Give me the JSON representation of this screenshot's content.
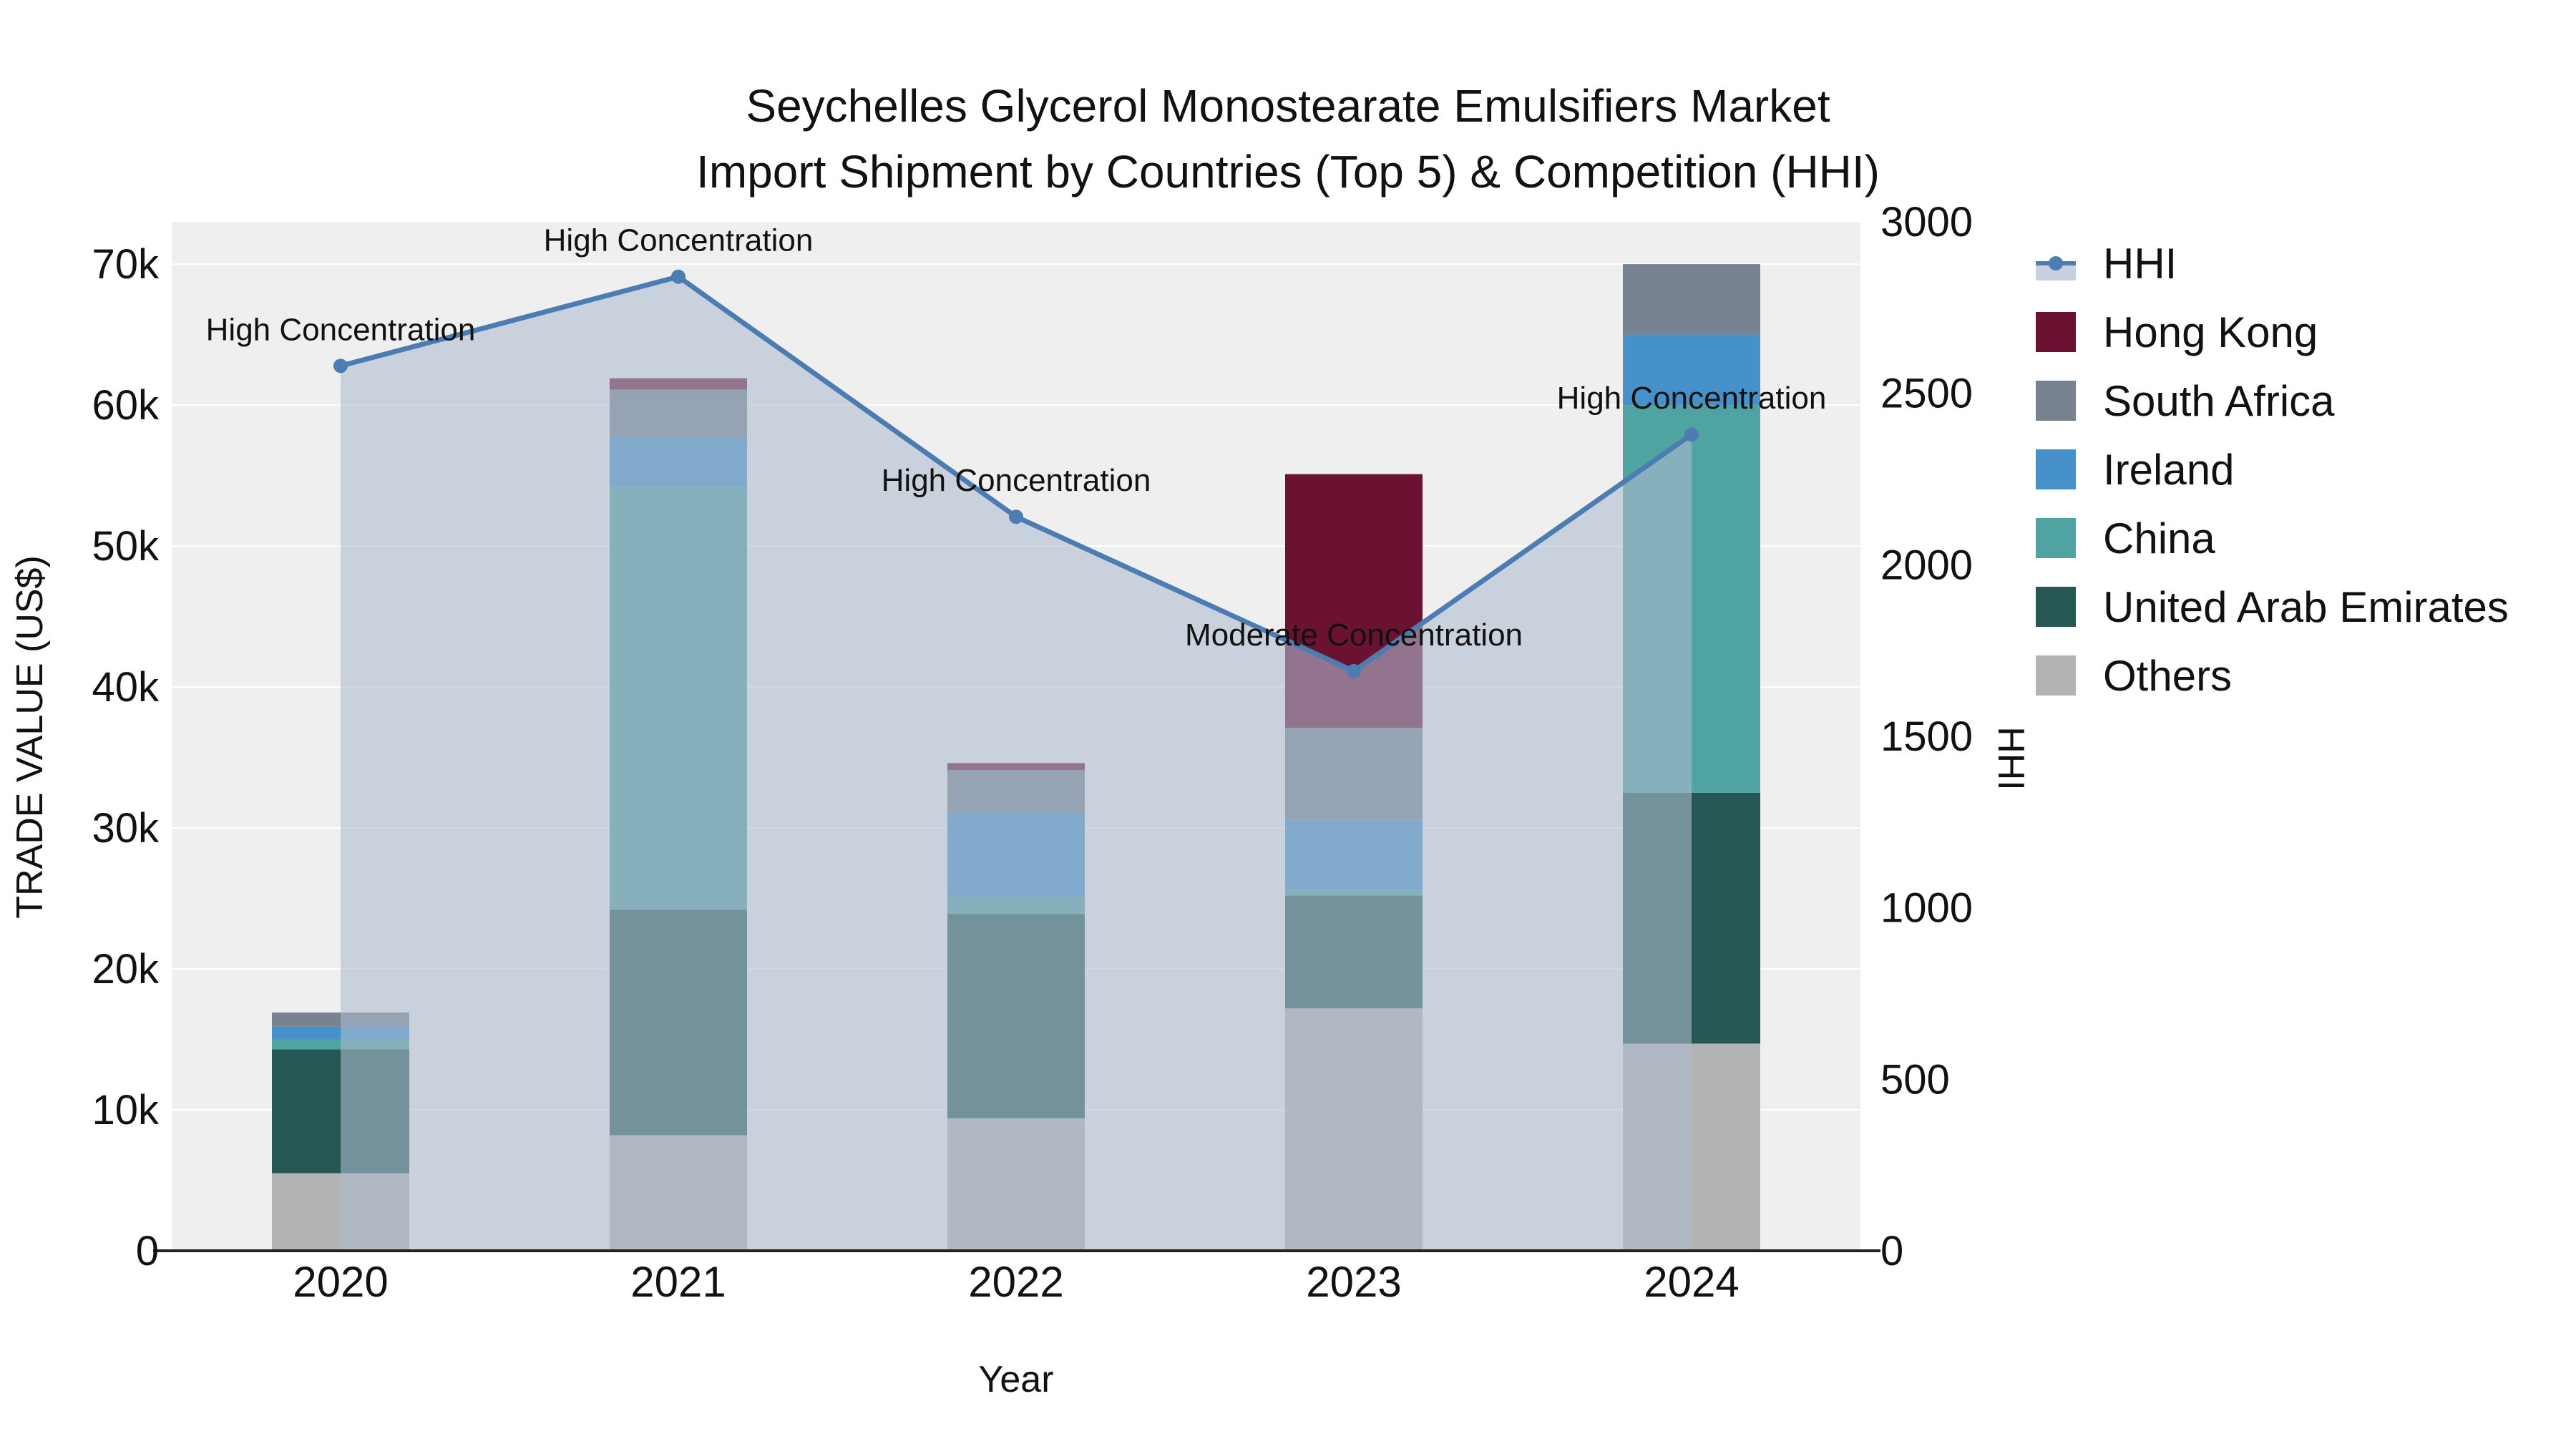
{
  "title": {
    "line1": "Seychelles Glycerol Monostearate Emulsifiers Market",
    "line2": "Import Shipment by Countries (Top 5) & Competition (HHI)"
  },
  "chart_data": {
    "type": "bar",
    "subtype": "stacked-bars-with-hhi-line-and-area",
    "categories": [
      "2020",
      "2021",
      "2022",
      "2023",
      "2024"
    ],
    "xlabel": "Year",
    "left_axis": {
      "label": "TRADE VALUE (US$)",
      "range": [
        0,
        73000
      ],
      "ticks": [
        {
          "value": 0,
          "label": "0"
        },
        {
          "value": 10000,
          "label": "10k"
        },
        {
          "value": 20000,
          "label": "20k"
        },
        {
          "value": 30000,
          "label": "30k"
        },
        {
          "value": 40000,
          "label": "40k"
        },
        {
          "value": 50000,
          "label": "50k"
        },
        {
          "value": 60000,
          "label": "60k"
        },
        {
          "value": 70000,
          "label": "70k"
        }
      ]
    },
    "right_axis": {
      "label": "HHI",
      "range": [
        0,
        3000
      ],
      "ticks": [
        {
          "value": 0,
          "label": "0"
        },
        {
          "value": 500,
          "label": "500"
        },
        {
          "value": 1000,
          "label": "1000"
        },
        {
          "value": 1500,
          "label": "1500"
        },
        {
          "value": 2000,
          "label": "2000"
        },
        {
          "value": 2500,
          "label": "2500"
        },
        {
          "value": 3000,
          "label": "3000"
        }
      ]
    },
    "bar_series": [
      {
        "name": "Others",
        "color": "#b3b3b3",
        "values": [
          5500,
          8200,
          9400,
          17200,
          14700
        ]
      },
      {
        "name": "United Arab Emirates",
        "color": "#255852",
        "values": [
          8800,
          16000,
          14500,
          8000,
          17800
        ]
      },
      {
        "name": "China",
        "color": "#4fa3a0",
        "values": [
          700,
          30000,
          1200,
          400,
          27500
        ]
      },
      {
        "name": "Ireland",
        "color": "#4691c9",
        "values": [
          900,
          3500,
          6000,
          5000,
          5000
        ]
      },
      {
        "name": "South Africa",
        "color": "#76828f",
        "values": [
          1000,
          3400,
          3000,
          6500,
          5000
        ]
      },
      {
        "name": "Hong Kong",
        "color": "#6b1232",
        "values": [
          0,
          800,
          500,
          18000,
          0
        ]
      }
    ],
    "line_series": {
      "name": "HHI",
      "axis": "right",
      "color": "#4b7db3",
      "area_color": "#aebcd0",
      "area_opacity": 0.58,
      "values": [
        2580,
        2840,
        2140,
        1690,
        2380
      ]
    },
    "annotations": [
      {
        "category": "2020",
        "text": "High Concentration"
      },
      {
        "category": "2021",
        "text": "High Concentration"
      },
      {
        "category": "2022",
        "text": "High Concentration"
      },
      {
        "category": "2023",
        "text": "Moderate Concentration"
      },
      {
        "category": "2024",
        "text": "High Concentration"
      }
    ],
    "legend": [
      {
        "label": "HHI",
        "type": "line",
        "color": "#4b7db3"
      },
      {
        "label": "Hong Kong",
        "type": "swatch",
        "color": "#6b1232"
      },
      {
        "label": "South Africa",
        "type": "swatch",
        "color": "#76828f"
      },
      {
        "label": "Ireland",
        "type": "swatch",
        "color": "#4691c9"
      },
      {
        "label": "China",
        "type": "swatch",
        "color": "#4fa3a0"
      },
      {
        "label": "United Arab Emirates",
        "type": "swatch",
        "color": "#255852"
      },
      {
        "label": "Others",
        "type": "swatch",
        "color": "#b3b3b3"
      }
    ],
    "plot_bg": "#efefef",
    "grid_color": "#ffffff",
    "axis_line_color": "#222222"
  }
}
